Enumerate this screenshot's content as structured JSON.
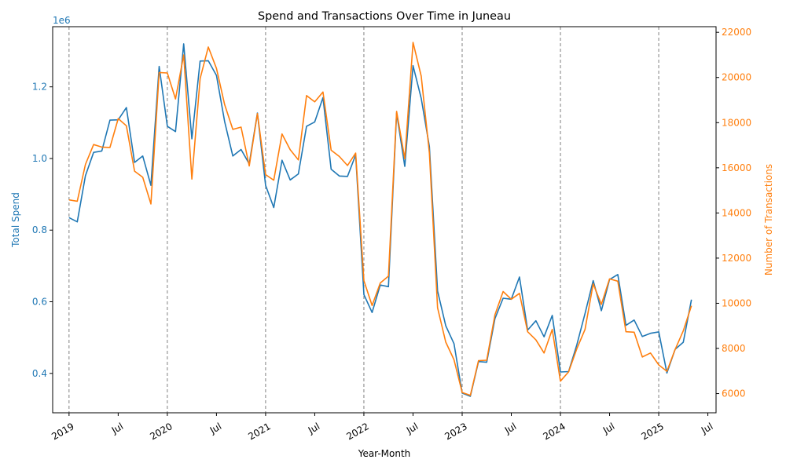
{
  "colors": {
    "spend": "#1f77b4",
    "transactions": "#ff7f0e",
    "axis": "#000000",
    "vline": "#808080"
  },
  "chart_data": {
    "type": "line",
    "title": "Spend and Transactions Over Time in Juneau",
    "xlabel": "Year-Month",
    "y_left_label": "Total Spend",
    "y_left_offset_label": "1e6",
    "y_right_label": "Number of Transactions",
    "x_start": "2019-01",
    "x_ticks": [
      {
        "label": "2019",
        "date": "2019-01"
      },
      {
        "label": "Jul",
        "date": "2019-07"
      },
      {
        "label": "2020",
        "date": "2020-01"
      },
      {
        "label": "Jul",
        "date": "2020-07"
      },
      {
        "label": "2021",
        "date": "2021-01"
      },
      {
        "label": "Jul",
        "date": "2021-07"
      },
      {
        "label": "2022",
        "date": "2022-01"
      },
      {
        "label": "Jul",
        "date": "2022-07"
      },
      {
        "label": "2023",
        "date": "2023-01"
      },
      {
        "label": "Jul",
        "date": "2023-07"
      },
      {
        "label": "2024",
        "date": "2024-01"
      },
      {
        "label": "Jul",
        "date": "2024-07"
      },
      {
        "label": "2025",
        "date": "2025-01"
      },
      {
        "label": "Jul",
        "date": "2025-07"
      }
    ],
    "x_range": [
      "2018-11",
      "2025-08"
    ],
    "year_lines": [
      "2019-01",
      "2020-01",
      "2021-01",
      "2022-01",
      "2023-01",
      "2024-01",
      "2025-01"
    ],
    "y_left_ticks": [
      "0.4",
      "0.6",
      "0.8",
      "1.0",
      "1.2"
    ],
    "y_left_range": [
      0.29,
      1.368
    ],
    "y_right_ticks": [
      "6000",
      "8000",
      "10000",
      "12000",
      "14000",
      "16000",
      "18000",
      "20000",
      "22000"
    ],
    "y_right_range": [
      5150,
      22250
    ],
    "series": [
      {
        "name": "Total Spend",
        "axis": "left",
        "values": [
          0.835,
          0.823,
          0.952,
          1.017,
          1.021,
          1.107,
          1.108,
          1.142,
          0.989,
          1.007,
          0.925,
          1.257,
          1.09,
          1.075,
          1.32,
          1.055,
          1.272,
          1.273,
          1.232,
          1.103,
          1.007,
          1.025,
          0.985,
          1.127,
          0.925,
          0.863,
          0.995,
          0.94,
          0.957,
          1.09,
          1.102,
          1.17,
          0.97,
          0.951,
          0.95,
          1.01,
          0.62,
          0.57,
          0.647,
          0.642,
          1.127,
          0.978,
          1.259,
          1.168,
          1.033,
          0.63,
          0.533,
          0.483,
          0.345,
          0.336,
          0.433,
          0.431,
          0.553,
          0.61,
          0.607,
          0.669,
          0.521,
          0.547,
          0.502,
          0.562,
          0.404,
          0.405,
          0.48,
          0.567,
          0.659,
          0.575,
          0.662,
          0.676,
          0.534,
          0.549,
          0.503,
          0.512,
          0.516,
          0.401,
          0.467,
          0.487,
          0.606
        ]
      },
      {
        "name": "Number of Transactions",
        "axis": "right",
        "values": [
          14580,
          14520,
          16150,
          17030,
          16920,
          16900,
          18180,
          17860,
          15850,
          15580,
          14400,
          20220,
          20200,
          19050,
          21000,
          15500,
          19950,
          21350,
          20400,
          18800,
          17700,
          17800,
          16080,
          18400,
          15700,
          15450,
          17500,
          16800,
          16350,
          19200,
          18920,
          19360,
          16780,
          16500,
          16100,
          16650,
          11000,
          9900,
          10900,
          11200,
          18500,
          16400,
          21550,
          20060,
          16650,
          9800,
          8280,
          7500,
          6050,
          5920,
          7460,
          7480,
          9490,
          10520,
          10180,
          10440,
          8740,
          8380,
          7800,
          8840,
          6550,
          6960,
          7990,
          8840,
          10860,
          9950,
          11080,
          10980,
          8740,
          8720,
          7620,
          7800,
          7270,
          6990,
          7950,
          8780,
          9890
        ]
      }
    ]
  }
}
